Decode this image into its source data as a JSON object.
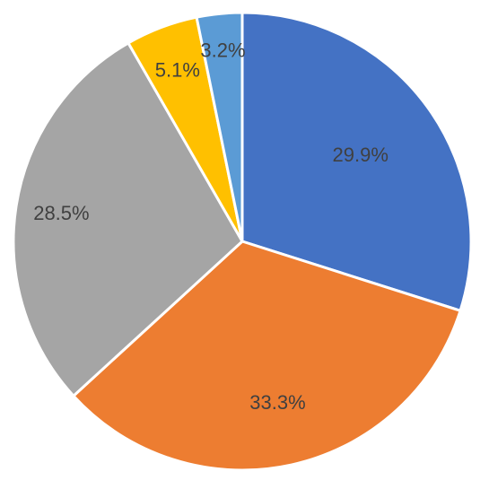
{
  "chart_data": {
    "type": "pie",
    "slices": [
      {
        "value": 29.9,
        "label": "29.9%",
        "color": "#4472C4"
      },
      {
        "value": 33.3,
        "label": "33.3%",
        "color": "#ED7D31"
      },
      {
        "value": 28.5,
        "label": "28.5%",
        "color": "#A5A5A5"
      },
      {
        "value": 5.1,
        "label": "5.1%",
        "color": "#FFC000"
      },
      {
        "value": 3.2,
        "label": "3.2%",
        "color": "#5B9BD5"
      }
    ],
    "start_angle_deg": 0,
    "direction": "clockwise",
    "legend": "none"
  }
}
